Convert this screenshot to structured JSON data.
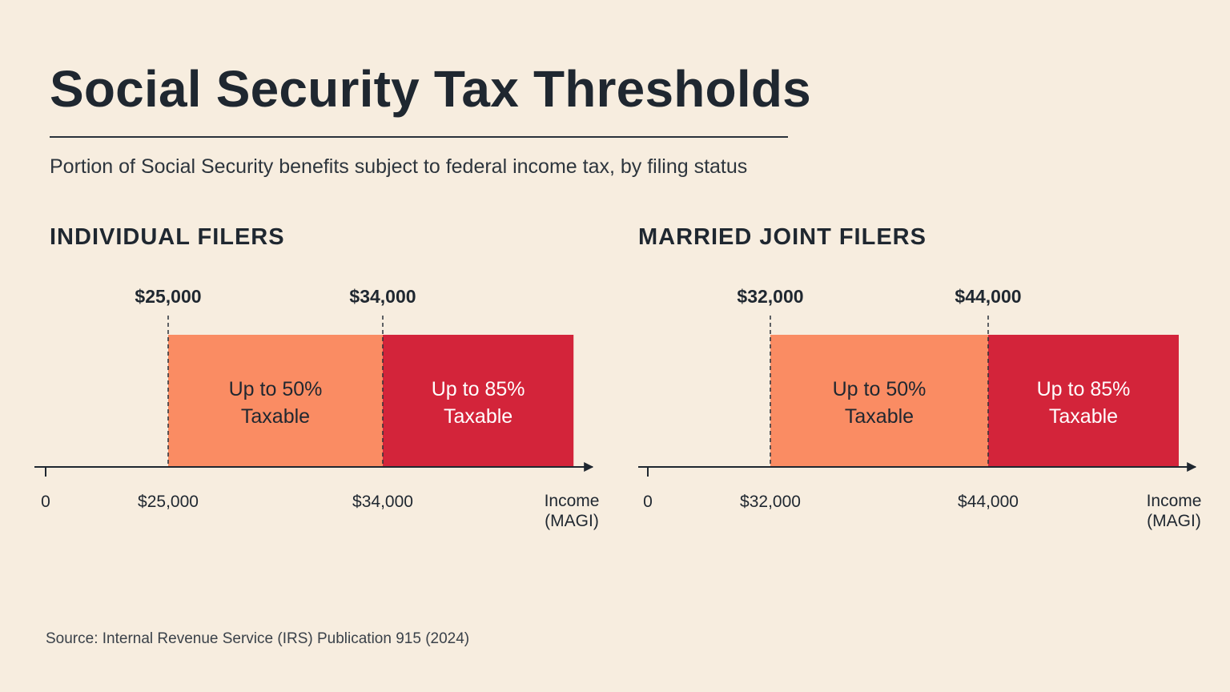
{
  "title": "Social Security Tax Thresholds",
  "subtitle": "Portion of Social Security benefits subject to federal income tax, by filing status",
  "source": "Source: Internal Revenue Service (IRS) Publication 915 (2024)",
  "colors": {
    "background": "#f7eddf",
    "band_50": "#fa8c63",
    "band_85": "#d3243a",
    "axis": "#1f2730",
    "text_dark": "#1f2730",
    "text_light": "#ffffff"
  },
  "chart_data": [
    {
      "type": "bar",
      "title": "INDIVIDUAL FILERS",
      "xlabel": "Income (MAGI)",
      "xlabel_lines": [
        "Income",
        "(MAGI)"
      ],
      "zero_label": "0",
      "thresholds": [
        {
          "value": 25000,
          "label": "$25,000"
        },
        {
          "value": 34000,
          "label": "$34,000"
        }
      ],
      "bands": [
        {
          "from": 25000,
          "to": 34000,
          "lines": [
            "Up to 50%",
            "Taxable"
          ],
          "color": "#fa8c63",
          "text_color": "#1f2730"
        },
        {
          "from": 34000,
          "to": 42000,
          "lines": [
            "Up to 85%",
            "Taxable"
          ],
          "color": "#d3243a",
          "text_color": "#ffffff"
        }
      ],
      "xlim": [
        0,
        46000
      ]
    },
    {
      "type": "bar",
      "title": "MARRIED JOINT FILERS",
      "xlabel": "Income (MAGI)",
      "xlabel_lines": [
        "Income",
        "(MAGI)"
      ],
      "zero_label": "0",
      "thresholds": [
        {
          "value": 32000,
          "label": "$32,000"
        },
        {
          "value": 44000,
          "label": "$44,000"
        }
      ],
      "bands": [
        {
          "from": 32000,
          "to": 44000,
          "lines": [
            "Up to 50%",
            "Taxable"
          ],
          "color": "#fa8c63",
          "text_color": "#1f2730"
        },
        {
          "from": 44000,
          "to": 54500,
          "lines": [
            "Up to 85%",
            "Taxable"
          ],
          "color": "#d3243a",
          "text_color": "#ffffff"
        }
      ],
      "xlim": [
        0,
        61000
      ]
    }
  ]
}
